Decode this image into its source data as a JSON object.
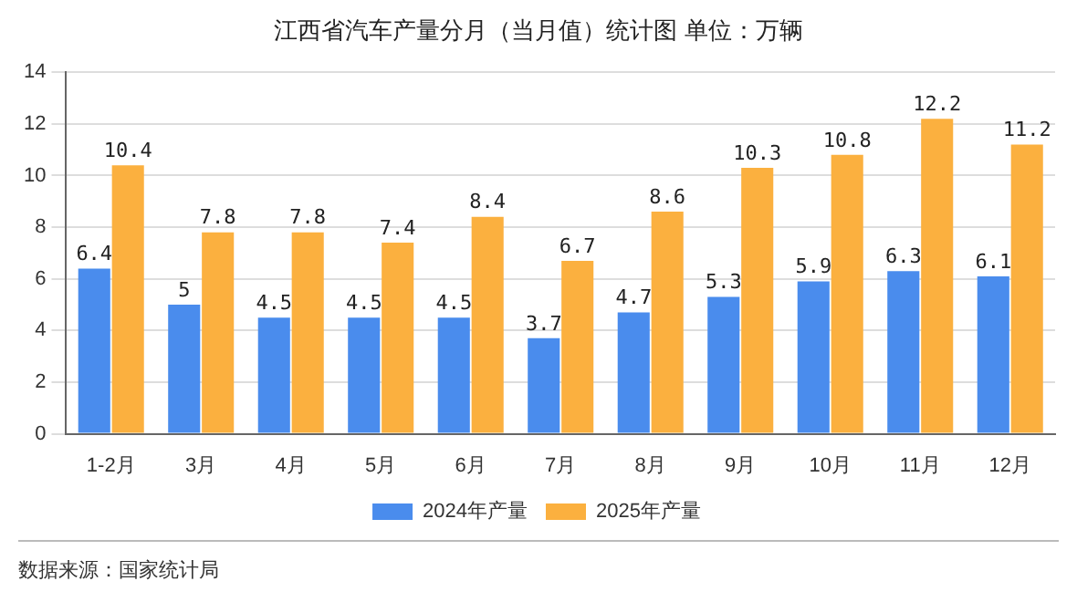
{
  "chart_data": {
    "type": "bar",
    "title": "江西省汽车产量分月（当月值）统计图 单位：万辆",
    "categories": [
      "1-2月",
      "3月",
      "4月",
      "5月",
      "6月",
      "7月",
      "8月",
      "9月",
      "10月",
      "11月",
      "12月"
    ],
    "series": [
      {
        "name": "2024年产量",
        "color": "#4a8ced",
        "values": [
          6.4,
          5,
          4.5,
          4.5,
          4.5,
          3.7,
          4.7,
          5.3,
          5.9,
          6.3,
          6.1
        ]
      },
      {
        "name": "2025年产量",
        "color": "#fbb03f",
        "values": [
          10.4,
          7.8,
          7.8,
          7.4,
          8.4,
          6.7,
          8.6,
          10.3,
          10.8,
          12.2,
          11.2
        ]
      }
    ],
    "ylim": [
      0,
      14
    ],
    "yticks": [
      0,
      2,
      4,
      6,
      8,
      10,
      12,
      14
    ],
    "grid": "y",
    "legend": "bottom",
    "data_labels": true,
    "annotations": [
      "数据来源：国家统计局"
    ]
  }
}
